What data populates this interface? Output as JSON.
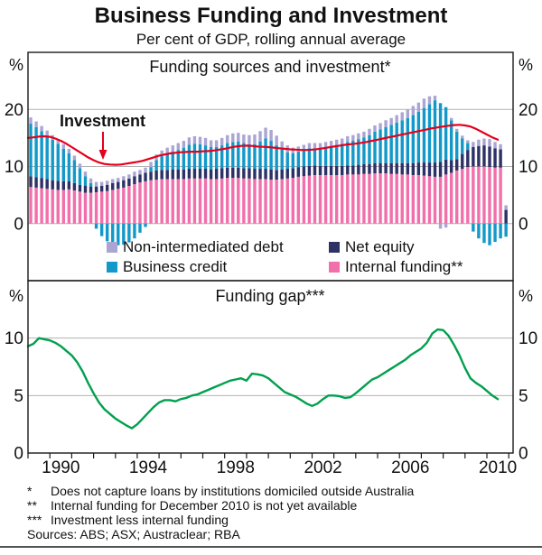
{
  "page": {
    "title": "Business Funding and Investment",
    "subtitle": "Per cent of GDP, rolling annual average",
    "unit": "%"
  },
  "colors": {
    "pink": "#f170ab",
    "navy": "#2c3166",
    "teal": "#1299c9",
    "purple": "#aba5d3",
    "red": "#e4001c",
    "green": "#00a04e",
    "grid": "#b3b3b3",
    "border": "#1a1a1a"
  },
  "legend": {
    "items": [
      {
        "label": "Non-intermediated debt",
        "color_key": "purple"
      },
      {
        "label": "Net equity",
        "color_key": "navy"
      },
      {
        "label": "Business credit",
        "color_key": "teal"
      },
      {
        "label": "Internal funding**",
        "color_key": "pink"
      }
    ]
  },
  "annotation": {
    "investment_label": "Investment"
  },
  "x_axis": {
    "range": [
      1989.0,
      2011.2
    ],
    "tick_year_start": 1989,
    "tick_year_end": 2011,
    "labels": [
      "1990",
      "1994",
      "1998",
      "2002",
      "2006",
      "2010"
    ],
    "label_years": [
      1990.5,
      1994.5,
      1998.5,
      2002.5,
      2006.5,
      2010.5
    ]
  },
  "chart_data": [
    {
      "type": "bar",
      "panel": "top",
      "title": "Funding sources and investment*",
      "ylabel": "%",
      "ylim": [
        -10,
        30
      ],
      "yticks": [
        0,
        10,
        20
      ],
      "x_start": 1989.0,
      "x_step": 0.25,
      "series": [
        {
          "name": "Internal funding**",
          "color_key": "pink",
          "values": [
            6.4,
            6.3,
            6.2,
            6.1,
            6.0,
            5.9,
            5.9,
            6.0,
            5.8,
            5.6,
            5.4,
            5.4,
            5.5,
            5.6,
            5.7,
            5.9,
            6.1,
            6.3,
            6.6,
            6.9,
            7.2,
            7.4,
            7.6,
            7.7,
            7.8,
            7.8,
            7.8,
            7.8,
            7.8,
            7.9,
            7.9,
            7.9,
            7.9,
            7.8,
            7.8,
            7.9,
            8.0,
            8.0,
            8.0,
            7.9,
            7.9,
            7.8,
            7.8,
            7.8,
            7.7,
            7.7,
            7.8,
            7.9,
            8.0,
            8.2,
            8.3,
            8.4,
            8.5,
            8.5,
            8.5,
            8.5,
            8.5,
            8.5,
            8.6,
            8.6,
            8.6,
            8.7,
            8.7,
            8.8,
            8.8,
            8.8,
            8.7,
            8.7,
            8.6,
            8.6,
            8.5,
            8.5,
            8.4,
            8.3,
            8.2,
            8.2,
            8.6,
            8.9,
            9.3,
            9.6,
            9.9,
            10.0,
            10.0,
            10.0,
            9.9,
            9.8,
            9.8,
            0
          ]
        },
        {
          "name": "Net equity",
          "color_key": "navy",
          "values": [
            1.9,
            1.8,
            1.8,
            1.7,
            1.6,
            1.6,
            1.5,
            1.4,
            1.3,
            1.2,
            1.2,
            1.1,
            1.0,
            1.0,
            1.1,
            1.2,
            1.2,
            1.3,
            1.3,
            1.4,
            1.4,
            1.5,
            1.5,
            1.6,
            1.6,
            1.6,
            1.7,
            1.7,
            1.7,
            1.7,
            1.7,
            1.7,
            1.7,
            1.7,
            1.8,
            1.8,
            1.8,
            1.8,
            1.8,
            1.8,
            1.8,
            1.8,
            1.8,
            1.8,
            1.8,
            1.7,
            1.7,
            1.7,
            1.7,
            1.7,
            1.7,
            1.7,
            1.7,
            1.6,
            1.6,
            1.6,
            1.6,
            1.6,
            1.6,
            1.6,
            1.7,
            1.7,
            1.7,
            1.8,
            1.8,
            1.8,
            1.9,
            1.9,
            2.0,
            2.0,
            2.1,
            2.2,
            2.3,
            2.4,
            2.5,
            2.6,
            2.6,
            2.2,
            2.0,
            2.6,
            3.0,
            3.4,
            3.6,
            3.7,
            3.6,
            3.4,
            3.2,
            2.4
          ]
        },
        {
          "name": "Business credit",
          "color_key": "teal",
          "values": [
            9.2,
            8.8,
            8.2,
            7.6,
            7.1,
            6.5,
            5.7,
            4.9,
            4.0,
            2.9,
            1.7,
            0.6,
            -0.9,
            -2.2,
            -3.1,
            -3.6,
            -3.8,
            -3.7,
            -3.3,
            -2.6,
            -1.6,
            -0.6,
            0.8,
            1.8,
            2.4,
            2.8,
            3.1,
            3.4,
            3.8,
            4.2,
            4.4,
            4.3,
            4.1,
            3.9,
            3.8,
            4.0,
            4.3,
            4.5,
            4.6,
            4.4,
            4.2,
            4.3,
            4.8,
            5.3,
            5.0,
            4.3,
            3.5,
            2.9,
            2.6,
            2.7,
            2.9,
            3.1,
            3.0,
            3.1,
            3.3,
            3.5,
            3.7,
            3.9,
            4.1,
            4.3,
            4.5,
            4.7,
            5.1,
            5.5,
            5.9,
            6.3,
            6.7,
            7.1,
            7.5,
            7.9,
            8.4,
            8.9,
            9.5,
            10.2,
            10.9,
            10.3,
            9.2,
            7.0,
            4.8,
            2.7,
            1.2,
            -1.4,
            -2.6,
            -3.4,
            -3.8,
            -3.2,
            -2.6,
            -2.3
          ]
        },
        {
          "name": "Non-intermediated debt",
          "color_key": "purple",
          "values": [
            1.1,
            1.0,
            0.9,
            0.9,
            0.8,
            0.8,
            0.8,
            0.8,
            0.8,
            0.8,
            0.8,
            0.8,
            0.8,
            0.7,
            0.7,
            0.7,
            0.7,
            0.7,
            0.7,
            0.8,
            0.8,
            0.9,
            0.9,
            1.0,
            1.0,
            1.1,
            1.1,
            1.2,
            1.2,
            1.3,
            1.3,
            1.3,
            1.3,
            1.2,
            1.2,
            1.3,
            1.4,
            1.5,
            1.5,
            1.5,
            1.6,
            1.7,
            1.8,
            1.9,
            1.9,
            1.7,
            1.4,
            1.2,
            1.0,
            0.9,
            0.9,
            0.9,
            0.9,
            0.9,
            0.9,
            0.9,
            0.9,
            0.9,
            1.0,
            1.0,
            1.0,
            1.0,
            1.1,
            1.1,
            1.1,
            1.2,
            1.2,
            1.3,
            1.4,
            1.5,
            1.6,
            1.6,
            1.7,
            1.4,
            0.8,
            -0.9,
            -0.7,
            0.4,
            0.5,
            0.5,
            0.5,
            0.9,
            1.1,
            1.2,
            1.3,
            1.1,
            0.9,
            0.8
          ]
        }
      ],
      "line": {
        "name": "Investment",
        "color_key": "red",
        "x_start": 1989.0,
        "x_step": 0.25,
        "values": [
          15.0,
          15.1,
          15.25,
          15.3,
          15.2,
          14.9,
          14.5,
          14.0,
          13.4,
          12.8,
          12.2,
          11.6,
          11.1,
          10.7,
          10.45,
          10.35,
          10.3,
          10.35,
          10.5,
          10.65,
          10.8,
          11.0,
          11.3,
          11.6,
          11.9,
          12.1,
          12.3,
          12.4,
          12.5,
          12.55,
          12.6,
          12.6,
          12.65,
          12.7,
          12.8,
          12.95,
          13.1,
          13.3,
          13.5,
          13.6,
          13.65,
          13.6,
          13.5,
          13.45,
          13.4,
          13.3,
          13.2,
          13.1,
          13.0,
          12.95,
          12.9,
          12.9,
          12.95,
          13.05,
          13.2,
          13.35,
          13.5,
          13.65,
          13.8,
          13.9,
          14.0,
          14.15,
          14.3,
          14.5,
          14.7,
          14.9,
          15.1,
          15.3,
          15.5,
          15.7,
          15.9,
          16.1,
          16.3,
          16.5,
          16.7,
          16.85,
          17.0,
          17.15,
          17.25,
          17.3,
          17.2,
          17.0,
          16.6,
          16.1,
          15.6,
          15.1,
          14.7
        ]
      }
    },
    {
      "type": "line",
      "panel": "bottom",
      "title": "Funding gap***",
      "ylabel": "%",
      "ylim": [
        0,
        15
      ],
      "yticks": [
        0,
        5,
        10
      ],
      "series": [
        {
          "name": "Funding gap",
          "color_key": "green",
          "x_start": 1989.0,
          "x_step": 0.25,
          "values": [
            9.3,
            9.5,
            10.0,
            9.9,
            9.8,
            9.6,
            9.3,
            8.9,
            8.5,
            7.9,
            7.1,
            6.1,
            5.2,
            4.4,
            3.8,
            3.4,
            3.0,
            2.7,
            2.4,
            2.15,
            2.5,
            3.0,
            3.5,
            4.0,
            4.4,
            4.6,
            4.6,
            4.5,
            4.7,
            4.8,
            5.0,
            5.1,
            5.3,
            5.5,
            5.7,
            5.9,
            6.1,
            6.3,
            6.4,
            6.5,
            6.3,
            6.9,
            6.85,
            6.75,
            6.5,
            6.1,
            5.7,
            5.3,
            5.1,
            4.9,
            4.6,
            4.3,
            4.1,
            4.3,
            4.7,
            5.0,
            5.0,
            4.95,
            4.8,
            4.85,
            5.2,
            5.6,
            6.0,
            6.4,
            6.6,
            6.9,
            7.2,
            7.5,
            7.8,
            8.1,
            8.5,
            8.8,
            9.1,
            9.6,
            10.4,
            10.75,
            10.7,
            10.2,
            9.4,
            8.5,
            7.4,
            6.5,
            6.1,
            5.8,
            5.4,
            5.0,
            4.7
          ]
        }
      ]
    }
  ],
  "footnotes": [
    {
      "marker": "*",
      "text": "Does not capture loans by institutions domiciled outside Australia"
    },
    {
      "marker": "**",
      "text": "Internal funding for December 2010 is not yet available"
    },
    {
      "marker": "***",
      "text": "Investment less internal funding"
    }
  ],
  "sources": "Sources: ABS; ASX; Austraclear; RBA"
}
